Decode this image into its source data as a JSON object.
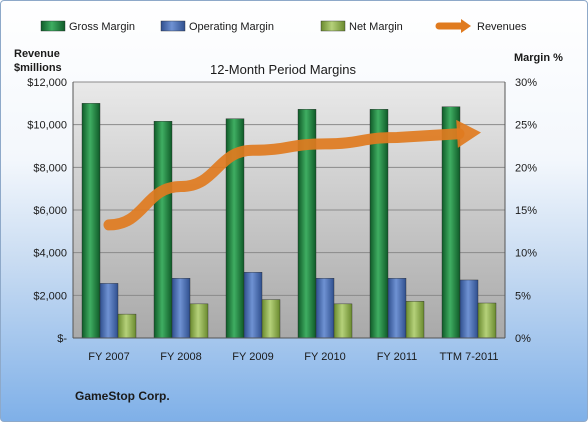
{
  "chart_data": {
    "type": "bar",
    "title": "12-Month Period Margins",
    "categories": [
      "FY 2007",
      "FY 2008",
      "FY 2009",
      "FY 2010",
      "FY 2011",
      "TTM 7-2011"
    ],
    "series": [
      {
        "name": "Gross Margin",
        "axis": "right",
        "color": "#1e7a3e",
        "values": [
          27.5,
          25.4,
          25.7,
          26.8,
          26.8,
          27.1
        ]
      },
      {
        "name": "Operating Margin",
        "axis": "right",
        "color": "#4a6fb5",
        "values": [
          6.4,
          7.0,
          7.7,
          7.0,
          7.0,
          6.8
        ]
      },
      {
        "name": "Net Margin",
        "axis": "right",
        "color": "#8db04a",
        "values": [
          2.8,
          4.0,
          4.5,
          4.0,
          4.3,
          4.1
        ]
      },
      {
        "name": "Revenues",
        "axis": "left",
        "type": "line",
        "color": "#e07b1f",
        "values": [
          5300,
          7100,
          8800,
          9100,
          9400,
          9600
        ]
      }
    ],
    "y_left": {
      "label_line1": "Revenue",
      "label_line2": "$millions",
      "range": [
        0,
        12000
      ],
      "ticks": [
        "$-",
        "$2,000",
        "$4,000",
        "$6,000",
        "$8,000",
        "$10,000",
        "$12,000"
      ]
    },
    "y_right": {
      "label": "Margin %",
      "range": [
        0,
        30
      ],
      "ticks": [
        "0%",
        "5%",
        "10%",
        "15%",
        "20%",
        "25%",
        "30%"
      ]
    },
    "grid": true,
    "legend_position": "top"
  },
  "footer": {
    "company": "GameStop Corp."
  }
}
